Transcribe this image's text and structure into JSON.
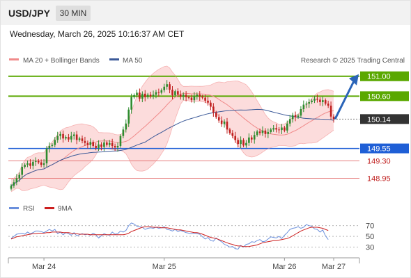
{
  "header": {
    "symbol": "USD/JPY",
    "timeframe": "30 MIN",
    "datetime": "Wednesday, March 26, 2025 10:16:37 AM CET"
  },
  "colors": {
    "bull": "#2e8b2e",
    "bear": "#c0201f",
    "bollinger_line": "#f08a8a",
    "bollinger_fill": "#fbd3d3",
    "ma50": "#3b5998",
    "resistance": "#5aa800",
    "support_main": "#1f5fd6",
    "support_minor": "#e05a5a",
    "current": "#333333",
    "arrow": "#2a64b8",
    "rsi": "#6a8fdc",
    "rsi_ma": "#cc1f1f"
  },
  "chart_data": [
    {
      "type": "candlestick",
      "title": "USD/JPY",
      "legend": [
        "MA 20 + Bollinger Bands",
        "MA 50"
      ],
      "watermark": "Research © 2025 Trading Central",
      "ylim": [
        148.72,
        151.15
      ],
      "x_ticks": [
        {
          "label": "Mar 24",
          "idx": 12
        },
        {
          "label": "Mar 25",
          "idx": 56
        },
        {
          "label": "Mar 26",
          "idx": 100
        },
        {
          "label": "Mar 27",
          "idx": 118
        }
      ],
      "levels": [
        {
          "value": 151.0,
          "label": "151.00",
          "kind": "resistance"
        },
        {
          "value": 150.6,
          "label": "150.60",
          "kind": "resistance"
        },
        {
          "value": 150.14,
          "label": "150.14",
          "kind": "current"
        },
        {
          "value": 149.55,
          "label": "149.55",
          "kind": "support_main"
        },
        {
          "value": 149.3,
          "label": "149.30",
          "kind": "support_minor"
        },
        {
          "value": 148.95,
          "label": "148.95",
          "kind": "support_minor"
        }
      ],
      "forecast_arrow": {
        "from": 150.14,
        "to": 151.0
      },
      "close": [
        148.8,
        148.87,
        148.95,
        149.02,
        149.18,
        149.22,
        149.25,
        149.2,
        149.28,
        149.3,
        149.27,
        149.22,
        149.25,
        149.55,
        149.6,
        149.62,
        149.72,
        149.8,
        149.84,
        149.75,
        149.78,
        149.73,
        149.8,
        149.83,
        149.72,
        149.75,
        149.7,
        149.66,
        149.62,
        149.68,
        149.6,
        149.56,
        149.63,
        149.58,
        149.67,
        149.62,
        149.66,
        149.6,
        149.57,
        149.6,
        149.8,
        149.93,
        150.05,
        150.33,
        150.58,
        150.62,
        150.67,
        150.55,
        150.65,
        150.58,
        150.63,
        150.6,
        150.63,
        150.68,
        150.67,
        150.72,
        150.79,
        150.84,
        150.73,
        150.62,
        150.7,
        150.63,
        150.59,
        150.63,
        150.58,
        150.57,
        150.52,
        150.6,
        150.63,
        150.59,
        150.57,
        150.51,
        150.47,
        150.39,
        150.27,
        150.18,
        150.11,
        150.04,
        150.09,
        149.93,
        149.86,
        149.8,
        149.72,
        149.64,
        149.72,
        149.61,
        149.66,
        149.77,
        149.73,
        149.82,
        149.89,
        149.86,
        149.91,
        149.84,
        149.88,
        149.93,
        149.96,
        149.93,
        149.92,
        149.97,
        149.91,
        150.05,
        150.14,
        150.22,
        150.18,
        150.21,
        150.34,
        150.43,
        150.45,
        150.48,
        150.51,
        150.55,
        150.53,
        150.48,
        150.52,
        150.45,
        150.41,
        150.19,
        150.14
      ]
    },
    {
      "type": "line",
      "title": "RSI",
      "legend": [
        "RSI",
        "9MA"
      ],
      "ylim": [
        15,
        80
      ],
      "y_ticks": [
        70,
        50,
        30
      ],
      "series": [
        {
          "name": "RSI",
          "values": [
            46,
            50,
            54,
            55,
            56,
            54,
            58,
            55,
            57,
            60,
            60,
            59,
            57,
            60,
            63,
            60,
            63,
            55,
            58,
            53,
            57,
            55,
            52,
            57,
            51,
            53,
            55,
            53,
            54,
            52,
            56,
            53,
            47,
            51,
            55,
            53,
            52,
            58,
            54,
            55,
            60,
            58,
            61,
            70,
            75,
            73,
            69,
            68,
            67,
            63,
            65,
            66,
            65,
            67,
            65,
            66,
            68,
            63,
            62,
            60,
            63,
            59,
            61,
            59,
            57,
            56,
            55,
            56,
            55,
            54,
            49,
            45,
            48,
            42,
            41,
            47,
            43,
            40,
            35,
            33,
            30,
            31,
            27,
            26,
            33,
            30,
            35,
            36,
            40,
            39,
            42,
            44,
            40,
            41,
            45,
            49,
            48,
            47,
            50,
            46,
            52,
            57,
            63,
            65,
            66,
            68,
            65,
            67,
            72,
            70,
            69,
            64,
            63,
            58,
            62,
            51,
            44
          ]
        },
        {
          "name": "9MA",
          "values": [
            45,
            47,
            49,
            50,
            51,
            52,
            53,
            54,
            55,
            55,
            56,
            56,
            56,
            57,
            57,
            58,
            58,
            58,
            58,
            57,
            57,
            57,
            56,
            55,
            55,
            54,
            54,
            54,
            54,
            53,
            53,
            53,
            53,
            53,
            53,
            53,
            53,
            53,
            53,
            53,
            53,
            53,
            54,
            56,
            59,
            61,
            63,
            65,
            67,
            68,
            68,
            68,
            67,
            67,
            67,
            66,
            66,
            66,
            65,
            64,
            63,
            62,
            62,
            61,
            60,
            59,
            58,
            57,
            57,
            56,
            54,
            52,
            50,
            48,
            47,
            46,
            44,
            42,
            40,
            38,
            36,
            35,
            33,
            32,
            32,
            31,
            31,
            31,
            32,
            33,
            34,
            36,
            38,
            39,
            40,
            41,
            42,
            42,
            43,
            44,
            45,
            46,
            48,
            51,
            54,
            57,
            60,
            62,
            64,
            66,
            67,
            67,
            67,
            66,
            65,
            63,
            61
          ]
        }
      ]
    }
  ]
}
